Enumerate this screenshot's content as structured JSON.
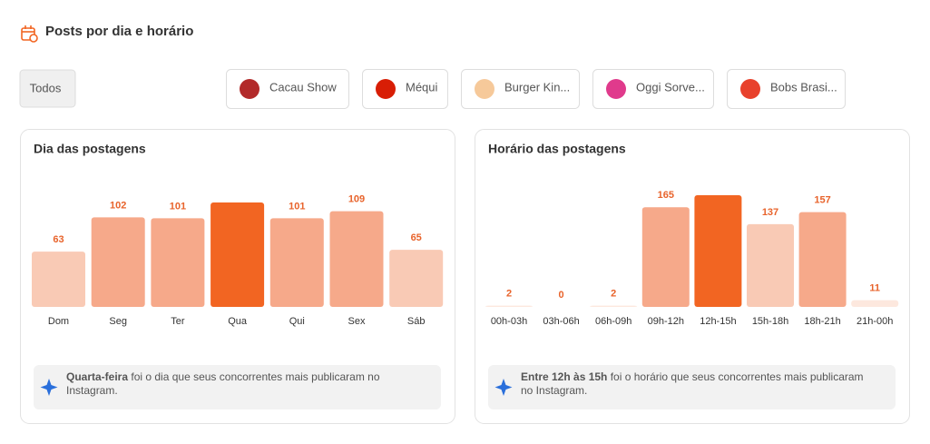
{
  "header": {
    "title": "Posts por dia e horário"
  },
  "filters": [
    "Todos",
    "Cacau Show",
    "Méqui",
    "Burger Kin...",
    "Oggi Sorve...",
    "Bobs Brasi..."
  ],
  "chart_data": [
    {
      "type": "bar",
      "title": "Dia das postagens",
      "categories": [
        "Dom",
        "Seg",
        "Ter",
        "Qua",
        "Qui",
        "Sex",
        "Sáb"
      ],
      "values": [
        63,
        102,
        101,
        119,
        101,
        109,
        65
      ],
      "colors": [
        "#f9cab5",
        "#f6a98a",
        "#f6a98a",
        "#f26522",
        "#f6a98a",
        "#f6a98a",
        "#f9cab5"
      ],
      "highlight": 3,
      "insight": [
        "Quarta-feira",
        " foi o dia que seus concorrentes mais publicaram no",
        "Instagram."
      ]
    },
    {
      "type": "bar",
      "title": "Horário das postagens",
      "categories": [
        "00h-03h",
        "03h-06h",
        "06h-09h",
        "09h-12h",
        "12h-15h",
        "15h-18h",
        "18h-21h",
        "21h-00h"
      ],
      "values": [
        2,
        0,
        2,
        165,
        185,
        137,
        157,
        11
      ],
      "colors": [
        "#fde8de",
        "#fde8de",
        "#fde8de",
        "#f6a98a",
        "#f26522",
        "#f9cab5",
        "#f6a98a",
        "#fde8de"
      ],
      "highlight": 4,
      "insight": [
        "Entre 12h às 15h",
        " foi o horário que seus concorrentes mais publicaram",
        "no Instagram."
      ]
    }
  ]
}
